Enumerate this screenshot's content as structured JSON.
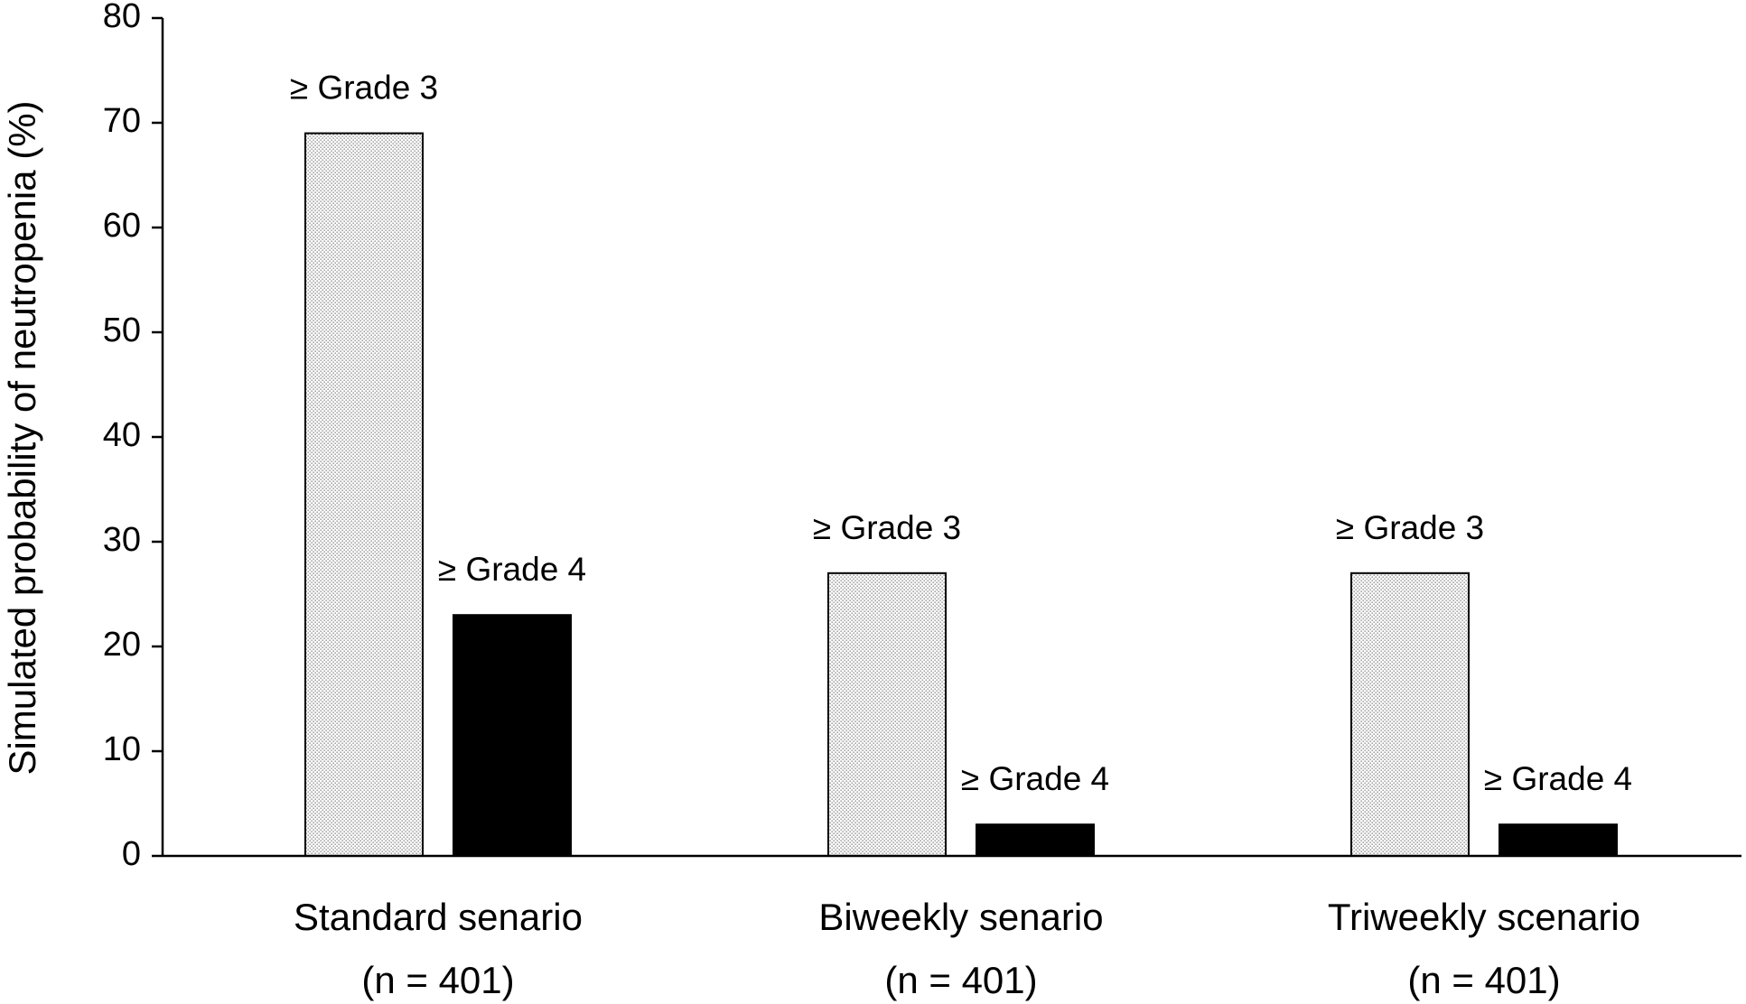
{
  "chart_data": {
    "type": "bar",
    "title": "",
    "xlabel": "",
    "ylabel": "Simulated probability of neutropenia (%)",
    "ylim": [
      0,
      80
    ],
    "yticks": [
      "0",
      "10",
      "20",
      "30",
      "40",
      "50",
      "60",
      "70",
      "80"
    ],
    "grid": false,
    "legend": "none",
    "categories": [
      {
        "name": "Standard senario",
        "sub": "(n = 401)"
      },
      {
        "name": "Biweekly senario",
        "sub": "(n = 401)"
      },
      {
        "name": "Triweekly scenario",
        "sub": "(n = 401)"
      }
    ],
    "series": [
      {
        "label": "≥ Grade 3",
        "values": [
          69,
          27,
          27
        ],
        "fill": "dotted",
        "color": "#e6e6e6"
      },
      {
        "label": "≥ Grade 4",
        "values": [
          23,
          3,
          3
        ],
        "fill": "solid",
        "color": "#000000"
      }
    ]
  }
}
